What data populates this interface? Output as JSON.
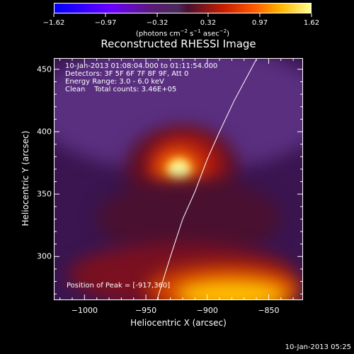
{
  "chart_data": {
    "type": "heatmap",
    "title": "Reconstructed RHESSI Image",
    "xlabel": "Heliocentric X (arcsec)",
    "ylabel": "Heliocentric Y (arcsec)",
    "xlim": [
      -1025,
      -822
    ],
    "ylim": [
      265,
      459
    ],
    "x_ticks": [
      "−1000",
      "−950",
      "−900",
      "−850"
    ],
    "x_tick_values": [
      -1000,
      -950,
      -900,
      -850
    ],
    "y_ticks": [
      "300",
      "350",
      "400",
      "450"
    ],
    "y_tick_values": [
      300,
      350,
      400,
      450
    ],
    "colorbar": {
      "ticks": [
        "−1.62",
        "−0.97",
        "−0.32",
        "0.32",
        "0.97",
        "1.62"
      ],
      "tick_values": [
        -1.62,
        -0.97,
        -0.32,
        0.32,
        0.97,
        1.62
      ],
      "units_prefix": "(photons cm",
      "units_exp1": "−2",
      "units_mid": " s",
      "units_exp2": "−1",
      "units_mid2": " asec",
      "units_exp3": "−2",
      "units_suffix": ")"
    },
    "annotations": {
      "time_range": "10-Jan-2013 01:08:04.000 to 01:11:54.000",
      "detectors": "Detectors: 3F 5F 6F 7F 8F 9F, Att 0",
      "energy": "Energy Range: 3.0 - 6.0 keV",
      "clean_label": "Clean",
      "counts": "Total counts: 3.46E+05",
      "peak": "Position of Peak = [-917,360]"
    },
    "peak_position": [
      -917,
      360
    ],
    "limb_curve": [
      [
        -941,
        265
      ],
      [
        -930,
        300
      ],
      [
        -920,
        330
      ],
      [
        -910,
        352
      ],
      [
        -900,
        378
      ],
      [
        -890,
        400
      ],
      [
        -878,
        425
      ],
      [
        -860,
        458
      ]
    ]
  },
  "footer": {
    "date": "10-Jan-2013 05:25"
  }
}
